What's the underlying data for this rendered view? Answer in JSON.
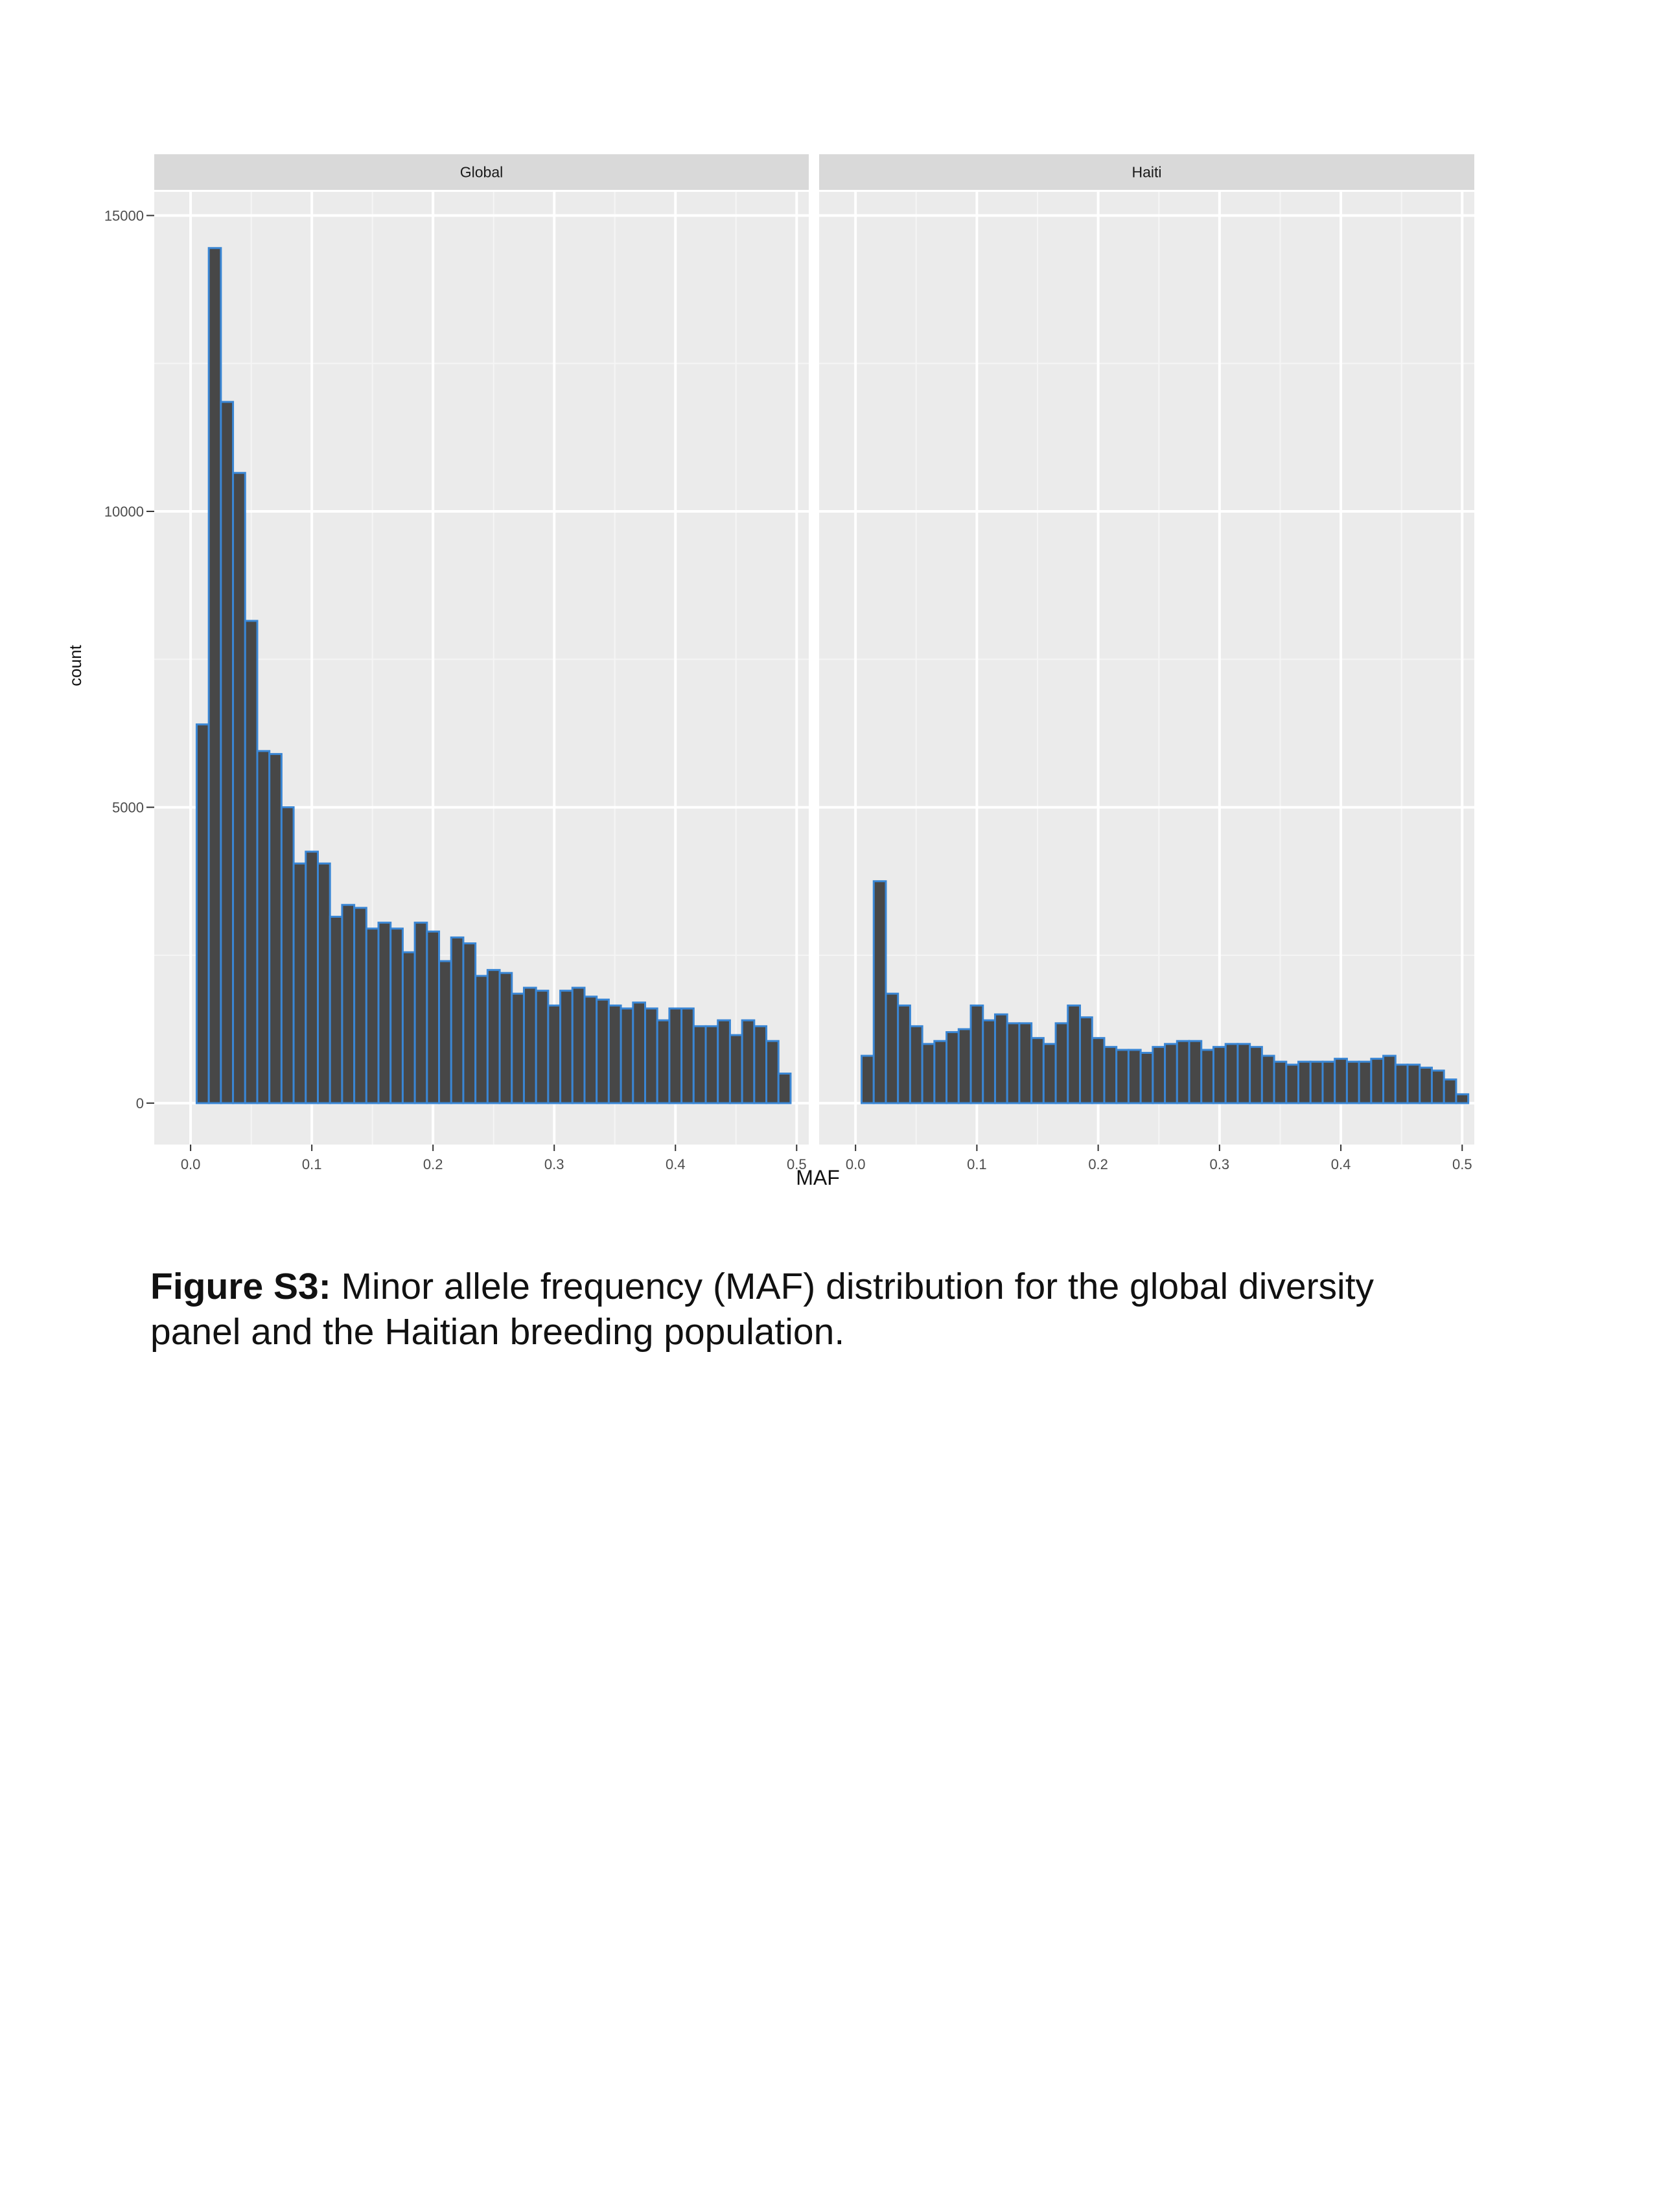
{
  "chart_data": {
    "type": "bar",
    "facets": [
      "Global",
      "Haiti"
    ],
    "xlabel": "MAF",
    "ylabel": "count",
    "xlim": [
      -0.03,
      0.51
    ],
    "ylim": [
      -700,
      15400
    ],
    "x_ticks": [
      "0.0",
      "0.1",
      "0.2",
      "0.3",
      "0.4",
      "0.5"
    ],
    "y_ticks": [
      "0",
      "5000",
      "10000",
      "15000"
    ],
    "x_tick_values": [
      0,
      0.1,
      0.2,
      0.3,
      0.4,
      0.5
    ],
    "y_tick_values": [
      0,
      5000,
      10000,
      15000
    ],
    "grid": true,
    "bin_width": 0.01,
    "bin_starts": [
      -0.005,
      0.005,
      0.015,
      0.025,
      0.035,
      0.045,
      0.055,
      0.065,
      0.075,
      0.085,
      0.095,
      0.105,
      0.115,
      0.125,
      0.135,
      0.145,
      0.155,
      0.165,
      0.175,
      0.185,
      0.195,
      0.205,
      0.215,
      0.225,
      0.235,
      0.245,
      0.255,
      0.265,
      0.275,
      0.285,
      0.295,
      0.305,
      0.315,
      0.325,
      0.335,
      0.345,
      0.355,
      0.365,
      0.375,
      0.385,
      0.395,
      0.405,
      0.415,
      0.425,
      0.435,
      0.445,
      0.455,
      0.465,
      0.475,
      0.485,
      0.495
    ],
    "series": [
      {
        "facet": "Global",
        "values": [
          0,
          6400,
          14450,
          11850,
          10650,
          8150,
          5950,
          5900,
          5000,
          4050,
          4250,
          4050,
          3150,
          3350,
          3300,
          2950,
          3050,
          2950,
          2550,
          3050,
          2900,
          2400,
          2800,
          2700,
          2150,
          2250,
          2200,
          1850,
          1950,
          1900,
          1650,
          1900,
          1950,
          1800,
          1750,
          1650,
          1600,
          1700,
          1600,
          1400,
          1600,
          1600,
          1300,
          1300,
          1400,
          1150,
          1400,
          1300,
          1050,
          500,
          0
        ],
        "fill": "#474747",
        "outline": "#3a86d4"
      },
      {
        "facet": "Haiti",
        "values": [
          0,
          800,
          3750,
          1850,
          1650,
          1300,
          1000,
          1050,
          1200,
          1250,
          1650,
          1400,
          1500,
          1350,
          1350,
          1100,
          1000,
          1350,
          1650,
          1450,
          1100,
          950,
          900,
          900,
          850,
          950,
          1000,
          1050,
          1050,
          900,
          950,
          1000,
          1000,
          950,
          800,
          700,
          650,
          700,
          700,
          700,
          750,
          700,
          700,
          750,
          800,
          650,
          650,
          600,
          550,
          400,
          150
        ]
      }
    ]
  },
  "caption": {
    "label": "Figure S3:",
    "text": " Minor allele frequency (MAF) distribution for the global diversity panel and the Haitian breeding population."
  },
  "colors": {
    "panel_bg": "#ebebeb",
    "strip_bg": "#d9d9d9",
    "grid_major": "#ffffff",
    "text": "#4d4d4d",
    "bar_fill": "#474747",
    "bar_outline": "#3a86d4"
  }
}
